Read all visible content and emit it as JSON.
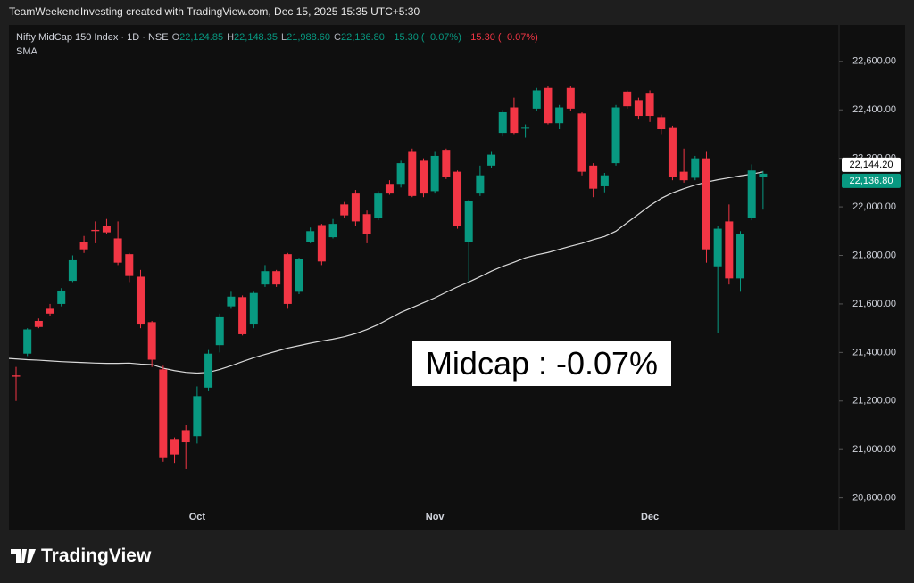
{
  "chart_data": {
    "type": "candlestick",
    "caption": "TeamWeekendInvesting created with TradingView.com, Dec 15, 2025 15:35 UTC+5:30",
    "title": "Nifty MidCap 150 Index · 1D · NSE",
    "ohlc_header": [
      {
        "key": "O",
        "text": "22,124.85"
      },
      {
        "key": "H",
        "text": "22,148.35"
      },
      {
        "key": "L",
        "text": "21,988.60"
      },
      {
        "key": "C",
        "text": "22,136.80"
      }
    ],
    "change_texts": [
      "−15.30 (−0.07%)",
      "−15.30 (−0.07%)"
    ],
    "annotation": "Midcap : -0.07%",
    "brand": "TradingView",
    "up_color": "#089981",
    "down_color": "#f23645",
    "categories": [
      null,
      null,
      null,
      null,
      null,
      null,
      null,
      null,
      null,
      null,
      null,
      null,
      null,
      null,
      null,
      null,
      "Oct",
      null,
      null,
      null,
      null,
      null,
      null,
      null,
      null,
      null,
      null,
      null,
      null,
      null,
      null,
      null,
      null,
      null,
      null,
      null,
      null,
      "Nov",
      null,
      null,
      null,
      null,
      null,
      null,
      null,
      null,
      null,
      null,
      null,
      null,
      null,
      null,
      null,
      null,
      null,
      null,
      "Dec",
      null,
      null,
      null,
      null,
      null,
      null,
      null,
      null,
      null,
      null
    ],
    "open": [
      21305,
      21395,
      21530,
      21580,
      21600,
      21695,
      21855,
      21905,
      21920,
      21870,
      21805,
      21712,
      21525,
      21330,
      21040,
      21080,
      21055,
      21255,
      21430,
      21590,
      21628,
      21515,
      21680,
      21735,
      21805,
      21650,
      21855,
      21925,
      21875,
      22010,
      22055,
      21970,
      21955,
      22095,
      22095,
      22230,
      22190,
      22065,
      22235,
      22145,
      21855,
      22055,
      22170,
      22305,
      22410,
      22325,
      22405,
      22490,
      22345,
      22490,
      22385,
      22170,
      22085,
      22180,
      22475,
      22440,
      22470,
      22370,
      22325,
      22145,
      22120,
      22200,
      21755,
      21940,
      21705,
      21955,
      22124.85
    ],
    "high": [
      21340,
      21500,
      21540,
      21600,
      21665,
      21800,
      21880,
      21940,
      21950,
      21940,
      21810,
      21740,
      21530,
      21345,
      21050,
      21100,
      21260,
      21410,
      21560,
      21650,
      21635,
      21650,
      21760,
      21740,
      21810,
      21790,
      21915,
      21930,
      21950,
      22020,
      22070,
      21985,
      22065,
      22110,
      22190,
      22240,
      22200,
      22230,
      22240,
      22150,
      22030,
      22170,
      22230,
      22400,
      22450,
      22340,
      22490,
      22500,
      22420,
      22500,
      22390,
      22180,
      22140,
      22420,
      22480,
      22450,
      22480,
      22380,
      22335,
      22240,
      22210,
      22230,
      21920,
      22010,
      21900,
      22175,
      22148.35
    ],
    "low": [
      21200,
      21385,
      21500,
      21550,
      21590,
      21690,
      21810,
      21850,
      21890,
      21760,
      21690,
      21500,
      21340,
      20950,
      20945,
      20920,
      21025,
      21240,
      21400,
      21580,
      21470,
      21500,
      21670,
      21670,
      21580,
      21640,
      21850,
      21760,
      21870,
      21955,
      21920,
      21850,
      21945,
      22050,
      22080,
      22040,
      22040,
      22055,
      22115,
      21910,
      21690,
      22045,
      22160,
      22290,
      22300,
      22285,
      22395,
      22340,
      22320,
      22395,
      22130,
      22040,
      22060,
      22170,
      22405,
      22360,
      22350,
      22300,
      22110,
      22100,
      22110,
      21770,
      21480,
      21680,
      21650,
      21945,
      21988.6
    ],
    "close": [
      21300,
      21495,
      21505,
      21560,
      21655,
      21780,
      21825,
      21900,
      21895,
      21770,
      21715,
      21515,
      21370,
      20965,
      20980,
      21030,
      21220,
      21395,
      21545,
      21630,
      21475,
      21645,
      21735,
      21680,
      21600,
      21785,
      21900,
      21775,
      21930,
      21965,
      21940,
      21890,
      22055,
      22055,
      22180,
      22045,
      22055,
      22210,
      22125,
      21920,
      22025,
      22130,
      22215,
      22390,
      22305,
      22326,
      22480,
      22345,
      22410,
      22405,
      22145,
      22075,
      22130,
      22410,
      22415,
      22375,
      22375,
      22320,
      22125,
      22110,
      22200,
      21825,
      21910,
      21705,
      21890,
      22150,
      22136.8
    ],
    "sma": {
      "name": "SMA",
      "color": "#d9d9d9",
      "values": [
        21375,
        21370,
        21368,
        21365,
        21362,
        21360,
        21358,
        21356,
        21355,
        21355,
        21356,
        21352,
        21350,
        21335,
        21325,
        21318,
        21315,
        21318,
        21330,
        21345,
        21362,
        21378,
        21392,
        21405,
        21418,
        21428,
        21438,
        21447,
        21455,
        21465,
        21478,
        21495,
        21515,
        21540,
        21565,
        21585,
        21605,
        21625,
        21648,
        21670,
        21690,
        21712,
        21735,
        21755,
        21772,
        21790,
        21802,
        21812,
        21825,
        21838,
        21850,
        21865,
        21878,
        21900,
        21935,
        21970,
        22005,
        22035,
        22058,
        22075,
        22090,
        22102,
        22112,
        22120,
        22128,
        22135,
        22144.2
      ]
    },
    "price_labels": [
      {
        "value": 22144.2,
        "label": "22,144.20",
        "color": "#ffffff"
      },
      {
        "value": 22136.8,
        "label": "22,136.80",
        "color": "#089981"
      }
    ],
    "ylim": [
      20670,
      22750
    ],
    "yticks": [
      {
        "value": 20800,
        "label": "20,800.00"
      },
      {
        "value": 21000,
        "label": "21,000.00"
      },
      {
        "value": 21200,
        "label": "21,200.00"
      },
      {
        "value": 21400,
        "label": "21,400.00"
      },
      {
        "value": 21600,
        "label": "21,600.00"
      },
      {
        "value": 21800,
        "label": "21,800.00"
      },
      {
        "value": 22000,
        "label": "22,000.00"
      },
      {
        "value": 22200,
        "label": "22,200.00"
      },
      {
        "value": 22400,
        "label": "22,400.00"
      },
      {
        "value": 22600,
        "label": "22,600.00"
      }
    ],
    "grid": false
  }
}
